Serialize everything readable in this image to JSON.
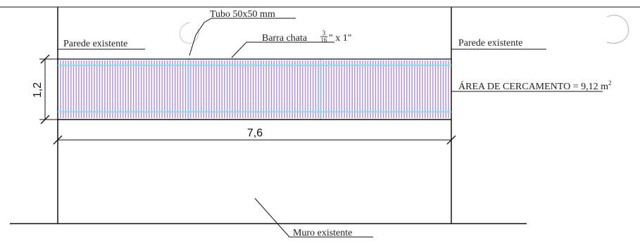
{
  "labels": {
    "tubo": "Tubo 50x50 mm",
    "barra_prefix": "Barra chata",
    "barra_num": "3",
    "barra_den": "16",
    "barra_suffix": "\" x 1\"",
    "parede_left": "Parede existente",
    "parede_right": "Parede existente",
    "area": "ÁREA DE CERCAMENTO = 9,12 m",
    "area_sup": "2",
    "muro": "Muro existente"
  },
  "dimensions": {
    "width": "7,6",
    "height": "1,2"
  },
  "colors": {
    "bars": "#a98be8",
    "tube": "#8fdcec",
    "line": "#111111"
  },
  "bar_count": 150
}
